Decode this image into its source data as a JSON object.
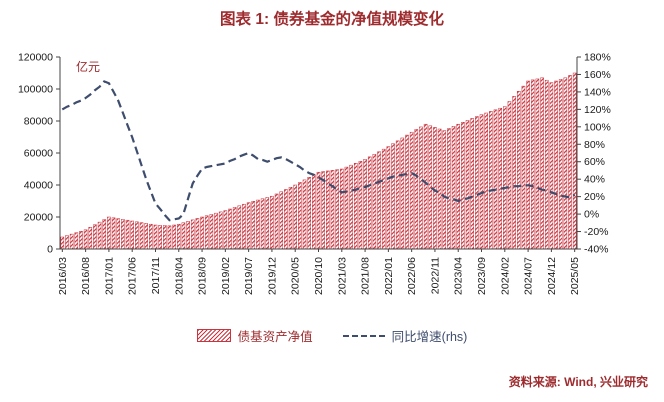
{
  "page": {
    "title": "图表 1: 债券基金的净值规模变化",
    "source_note": "资料来源: Wind, 兴业研究",
    "accent_color": "#9e2b2e",
    "background": "#ffffff"
  },
  "chart_data": {
    "type": "combo-bar-line",
    "title": "图表 1: 债券基金的净值规模变化",
    "unit_label": "亿元",
    "grid": false,
    "legend_position": "bottom",
    "x_frequency": "monthly",
    "x_start": "2016/03",
    "x_end": "2025/05",
    "tick_every": 5,
    "x_tick_labels": [
      "2016/03",
      "2016/08",
      "2017/01",
      "2017/06",
      "2017/11",
      "2018/04",
      "2018/09",
      "2019/02",
      "2019/07",
      "2019/12",
      "2020/05",
      "2020/10",
      "2021/03",
      "2021/08",
      "2022/01",
      "2022/06",
      "2022/11",
      "2023/04",
      "2023/09",
      "2024/02",
      "2024/07",
      "2024/12",
      "2025/05"
    ],
    "left_axis": {
      "min": 0,
      "max": 120000,
      "step": 20000,
      "suffix": ""
    },
    "right_axis": {
      "min": -40,
      "max": 180,
      "step": 20,
      "suffix": "%"
    },
    "series": [
      {
        "name": "债基资产净值",
        "type": "bar",
        "axis": "left",
        "color": "#c9353f",
        "fill_style": "diagonal-hatch",
        "values": [
          7500,
          8400,
          9300,
          10200,
          11100,
          12000,
          13600,
          15200,
          16800,
          18400,
          20000,
          19500,
          19000,
          18500,
          18000,
          17500,
          17000,
          16500,
          16000,
          15500,
          15000,
          14800,
          14700,
          14500,
          15000,
          15500,
          16400,
          17300,
          18200,
          19100,
          20000,
          20800,
          21600,
          22400,
          23200,
          24000,
          25000,
          26000,
          27000,
          28000,
          29000,
          29800,
          30600,
          31400,
          32200,
          33000,
          34400,
          35800,
          37200,
          38600,
          40000,
          41600,
          43200,
          44800,
          46400,
          48000,
          48400,
          48800,
          49200,
          49600,
          50000,
          51200,
          52400,
          53600,
          54800,
          56000,
          57600,
          59200,
          60800,
          62400,
          64000,
          65800,
          67600,
          69400,
          71200,
          73000,
          74700,
          76300,
          78000,
          77000,
          76000,
          75000,
          74000,
          75300,
          76700,
          78000,
          79200,
          80400,
          81600,
          82800,
          84000,
          85000,
          86000,
          87000,
          88000,
          89000,
          92200,
          95400,
          98600,
          101800,
          105000,
          105700,
          106300,
          107000,
          105500,
          104000,
          105000,
          106000,
          107000,
          108500,
          110000
        ]
      },
      {
        "name": "同比增速(rhs)",
        "type": "line",
        "axis": "right",
        "color": "#3e4d6d",
        "line_style": "dashed",
        "values": [
          120,
          123,
          125,
          128,
          130,
          133,
          137,
          142,
          146,
          152,
          150,
          140,
          130,
          116,
          102,
          88,
          72,
          56,
          40,
          26,
          12,
          6,
          -1,
          -7,
          -6,
          -5,
          0,
          18,
          35,
          44,
          52,
          54,
          55,
          56,
          57,
          58,
          61,
          63,
          66,
          68,
          70,
          67,
          63,
          62,
          60,
          62,
          64,
          65,
          63,
          60,
          57,
          54,
          50,
          47,
          45,
          42,
          39,
          35,
          32,
          28,
          25,
          26,
          27,
          28,
          30,
          31,
          33,
          35,
          37,
          39,
          41,
          43,
          44,
          45,
          46,
          47,
          44,
          40,
          36,
          31,
          27,
          24,
          20,
          18,
          17,
          15,
          17,
          18,
          20,
          22,
          24,
          26,
          27,
          28,
          29,
          30,
          31,
          32,
          32,
          33,
          33,
          32,
          30,
          28,
          27,
          25,
          23,
          21,
          20,
          19,
          22
        ]
      }
    ]
  }
}
